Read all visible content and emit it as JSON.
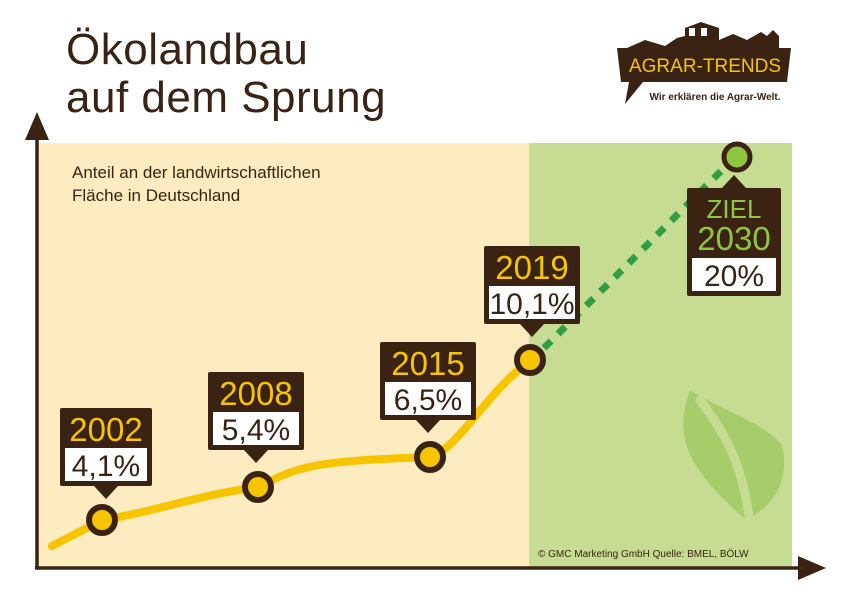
{
  "title_line1": "Ökolandbau",
  "title_line2": "auf dem Sprung",
  "logo": {
    "name": "AGRAR-TRENDS",
    "tagline": "Wir erklären die Agrar-Welt.",
    "icon": "farm-silhouette-icon"
  },
  "subtitle_line1": "Anteil an der landwirtschaftlichen",
  "subtitle_line2": "Fläche in Deutschland",
  "source": "© GMC Marketing GmbH   Quelle: BMEL, BÖLW",
  "colors": {
    "brown": "#3b2314",
    "yellow": "#f7c400",
    "cream": "#fdecbf",
    "lightgreen": "#c5dc92",
    "green": "#2f9e44",
    "target_green": "#8dc63f"
  },
  "chart_data": {
    "type": "line",
    "title": "Ökolandbau auf dem Sprung",
    "subtitle": "Anteil an der landwirtschaftlichen Fläche in Deutschland",
    "x_unit": "year",
    "y_unit": "%",
    "series": [
      {
        "style": "solid-yellow",
        "points": [
          {
            "x": 2002,
            "y": 4.1,
            "label_year": "2002",
            "label_value": "4,1%"
          },
          {
            "x": 2008,
            "y": 5.4,
            "label_year": "2008",
            "label_value": "5,4%"
          },
          {
            "x": 2015,
            "y": 6.5,
            "label_year": "2015",
            "label_value": "6,5%"
          },
          {
            "x": 2019,
            "y": 10.1,
            "label_year": "2019",
            "label_value": "10,1%"
          }
        ]
      },
      {
        "style": "dotted-green",
        "points": [
          {
            "x": 2019,
            "y": 10.1
          },
          {
            "x": 2030,
            "y": 20,
            "label_prefix": "ZIEL",
            "label_year": "2030",
            "label_value": "20%"
          }
        ]
      }
    ],
    "target_zone_start": 2019,
    "grid": false,
    "legend": "none"
  }
}
